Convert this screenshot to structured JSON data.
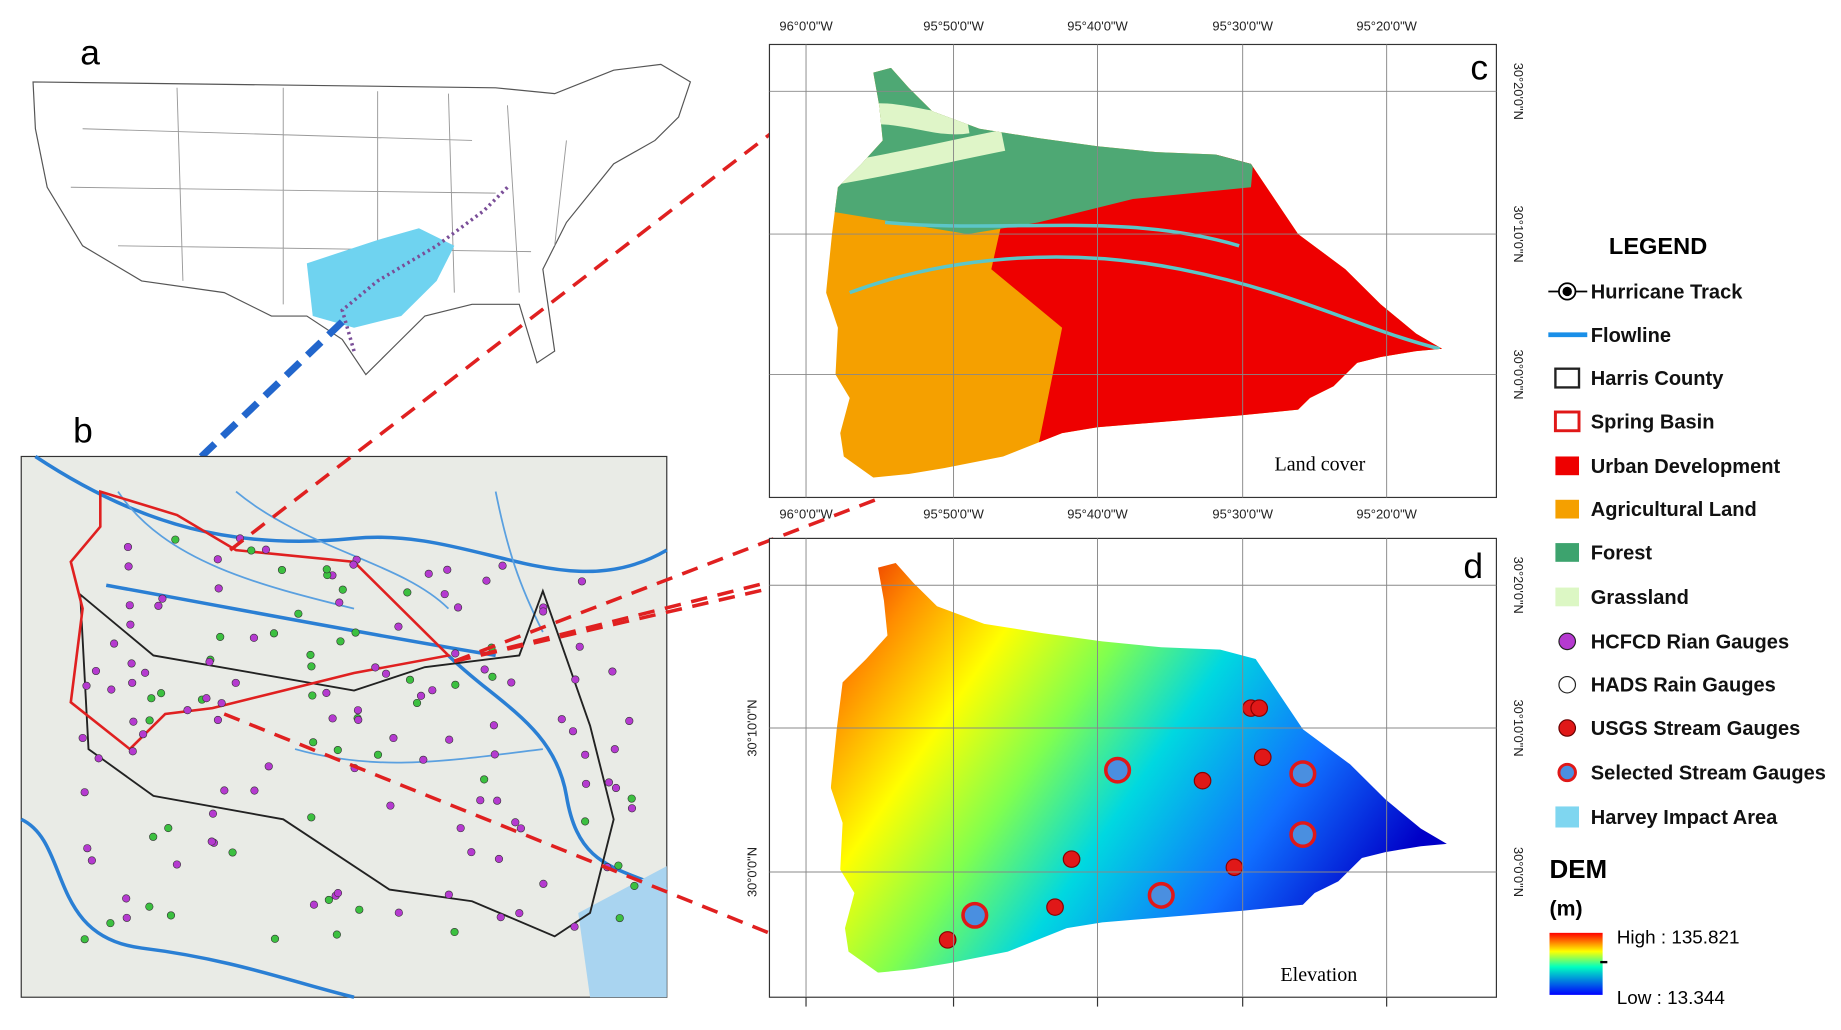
{
  "panel_labels": [
    "a",
    "b",
    "c",
    "d"
  ],
  "panel_c": {
    "caption": "Land cover",
    "top_lon_labels": [
      "96°0'0\"W",
      "95°50'0\"W",
      "95°40'0\"W",
      "95°30'0\"W",
      "95°20'0\"W"
    ],
    "bottom_lon_labels": [
      "96°0'0\"W",
      "95°50'0\"W",
      "95°40'0\"W",
      "95°30'0\"W",
      "95°20'0\"W"
    ],
    "right_lat_labels": [
      "30°20'0\"N",
      "30°10'0\"N",
      "30°0'0\"N"
    ]
  },
  "panel_d": {
    "caption": "Elevation",
    "left_lat_labels": [
      "30°10'0\"N",
      "30°0'0\"N"
    ],
    "right_lat_labels": [
      "30°20'0\"N",
      "30°10'0\"N",
      "30°0'0\"N"
    ]
  },
  "legend": {
    "title": "LEGEND",
    "items": [
      "Hurricane Track",
      "Flowline",
      "Harris County",
      "Spring Basin",
      "Urban Development",
      "Agricultural Land",
      "Forest",
      "Grassland",
      "HCFCD Rian Gauges",
      "HADS Rain Gauges",
      "USGS Stream Gauges",
      "Selected Stream Gauges",
      "Harvey Impact Area"
    ]
  },
  "dem": {
    "title": "DEM",
    "unit": "(m)",
    "high": "High : 135.821",
    "low": "Low : 13.344"
  }
}
